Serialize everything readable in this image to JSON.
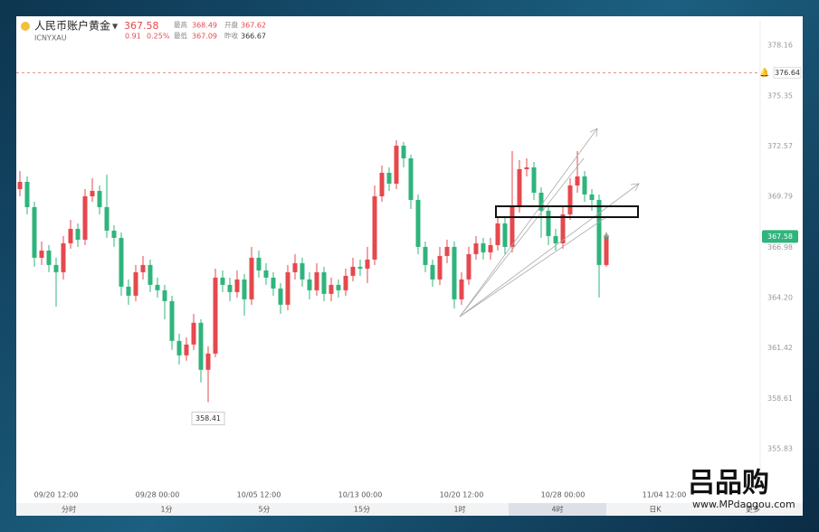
{
  "header": {
    "name": "人民币账户黄金",
    "price": "367.58",
    "change": "0.91",
    "change_pct": "0.25%",
    "symbol": "ICNYXAU",
    "stats": [
      {
        "label": "最高",
        "value": "368.49"
      },
      {
        "label": "开盘",
        "value": "367.62"
      },
      {
        "label": "最低",
        "value": "367.09"
      },
      {
        "label": "昨收",
        "value": "366.67"
      }
    ]
  },
  "tabs": [
    "分时",
    "1分",
    "5分",
    "15分",
    "1时",
    "4时",
    "日K",
    "更多"
  ],
  "selected_tab": 5,
  "watermark": {
    "brand": "吕品购",
    "url": "www.MPdaogou.com"
  },
  "chart_data": {
    "type": "candlestick",
    "categories": [
      null,
      null,
      null,
      null,
      null,
      "09/20 12:00",
      null,
      null,
      null,
      null,
      null,
      null,
      null,
      null,
      null,
      null,
      null,
      null,
      null,
      "09/28 00:00",
      null,
      null,
      null,
      null,
      null,
      null,
      null,
      null,
      null,
      null,
      null,
      null,
      null,
      "10/05 12:00",
      null,
      null,
      null,
      null,
      null,
      null,
      null,
      null,
      null,
      null,
      null,
      null,
      null,
      "10/13 00:00",
      null,
      null,
      null,
      null,
      null,
      null,
      null,
      null,
      null,
      null,
      null,
      null,
      null,
      "10/20 12:00",
      null,
      null,
      null,
      null,
      null,
      null,
      null,
      null,
      null,
      null,
      null,
      null,
      null,
      "10/28 00:00",
      null,
      null,
      null,
      null,
      null,
      null,
      null,
      null,
      null,
      null,
      null,
      null,
      null,
      "11/04 12:00"
    ],
    "open": [
      370.2,
      370.6,
      369.2,
      366.4,
      366.8,
      366.0,
      365.6,
      367.2,
      368.0,
      367.4,
      369.8,
      370.1,
      369.2,
      367.9,
      367.5,
      364.8,
      364.3,
      365.6,
      366.0,
      364.9,
      364.6,
      364.0,
      361.8,
      361.0,
      361.6,
      362.8,
      360.2,
      361.1,
      365.3,
      364.9,
      364.5,
      365.2,
      364.1,
      366.4,
      365.7,
      365.3,
      364.7,
      363.8,
      365.6,
      366.1,
      365.2,
      364.6,
      365.6,
      364.4,
      364.9,
      364.6,
      365.4,
      365.9,
      365.8,
      366.3,
      369.8,
      371.1,
      370.5,
      372.6,
      371.9,
      369.6,
      367.0,
      366.0,
      365.2,
      366.5,
      367.0,
      364.1,
      365.2,
      366.6,
      367.2,
      366.7,
      367.1,
      368.3,
      367.0,
      369.2,
      371.3,
      371.4,
      370.0,
      369.0,
      367.6,
      367.2,
      368.8,
      370.4,
      370.9,
      369.9,
      369.6,
      366.0,
      null,
      null,
      null,
      null,
      null,
      null,
      null,
      null
    ],
    "high": [
      371.2,
      370.9,
      369.5,
      367.3,
      367.1,
      366.4,
      367.6,
      368.5,
      368.3,
      370.2,
      370.8,
      370.4,
      371.0,
      368.2,
      367.8,
      365.2,
      366.0,
      366.5,
      366.3,
      365.3,
      364.9,
      364.3,
      362.2,
      362.0,
      363.3,
      363.0,
      361.5,
      365.8,
      365.7,
      365.3,
      365.7,
      365.5,
      367.0,
      366.8,
      366.1,
      365.6,
      365.0,
      366.0,
      366.6,
      366.4,
      365.6,
      366.1,
      365.9,
      365.3,
      365.2,
      365.8,
      366.4,
      366.3,
      367.0,
      370.4,
      371.5,
      371.4,
      372.9,
      372.8,
      372.1,
      369.9,
      367.3,
      366.3,
      367.0,
      367.4,
      367.3,
      365.6,
      367.0,
      367.6,
      367.5,
      367.5,
      368.7,
      368.6,
      372.3,
      371.8,
      371.9,
      371.7,
      370.3,
      369.3,
      368.0,
      369.2,
      370.8,
      372.3,
      371.2,
      370.2,
      369.9,
      367.82,
      null,
      null,
      null,
      null,
      null,
      null,
      null,
      null
    ],
    "low": [
      369.8,
      368.8,
      365.9,
      366.0,
      365.6,
      363.7,
      365.2,
      366.9,
      367.0,
      367.1,
      369.5,
      368.8,
      367.5,
      367.0,
      364.3,
      363.8,
      364.0,
      365.2,
      364.5,
      364.2,
      363.0,
      361.3,
      360.5,
      360.7,
      361.3,
      359.5,
      358.41,
      360.9,
      364.5,
      364.0,
      364.2,
      363.2,
      363.8,
      365.3,
      364.9,
      364.3,
      363.3,
      363.5,
      365.2,
      364.8,
      364.1,
      364.3,
      364.0,
      364.0,
      364.2,
      364.3,
      365.1,
      365.4,
      365.0,
      366.0,
      369.5,
      370.1,
      370.2,
      371.4,
      369.1,
      366.6,
      365.6,
      364.8,
      364.9,
      366.1,
      363.6,
      363.8,
      364.9,
      366.3,
      366.3,
      366.3,
      366.8,
      366.6,
      366.7,
      368.9,
      370.9,
      369.6,
      367.5,
      367.1,
      366.8,
      366.9,
      368.5,
      370.0,
      369.5,
      369.0,
      364.2,
      365.9,
      null,
      null,
      null,
      null,
      null,
      null,
      null,
      null
    ],
    "close": [
      370.6,
      369.2,
      366.4,
      366.8,
      366.0,
      365.6,
      367.2,
      368.0,
      367.4,
      369.8,
      370.1,
      369.2,
      367.9,
      367.5,
      364.8,
      364.3,
      365.6,
      366.0,
      364.9,
      364.6,
      364.0,
      361.8,
      361.0,
      361.6,
      362.8,
      360.2,
      361.1,
      365.3,
      364.9,
      364.5,
      365.2,
      364.1,
      366.4,
      365.7,
      365.3,
      364.7,
      363.8,
      365.6,
      366.1,
      365.2,
      364.6,
      365.6,
      364.4,
      364.9,
      364.6,
      365.4,
      365.9,
      365.8,
      366.3,
      369.8,
      371.1,
      370.5,
      372.6,
      371.9,
      369.6,
      367.0,
      366.0,
      365.2,
      366.5,
      367.0,
      364.1,
      365.2,
      366.6,
      367.2,
      366.7,
      367.1,
      368.3,
      367.0,
      369.2,
      371.3,
      371.4,
      370.0,
      369.0,
      367.6,
      367.2,
      368.8,
      370.4,
      370.9,
      369.9,
      369.6,
      366.0,
      367.58,
      null,
      null,
      null,
      null,
      null,
      null,
      null,
      null
    ],
    "up_color": "#e5484d",
    "down_color": "#2fb47c",
    "ylim": [
      353.88,
      379.16
    ],
    "yticks": [
      378.16,
      375.35,
      372.57,
      369.79,
      366.98,
      {
        "value": 364.2,
        "label": "364.20"
      },
      361.42,
      358.61,
      355.83
    ],
    "grid": false,
    "alert_line": 376.64
  }
}
